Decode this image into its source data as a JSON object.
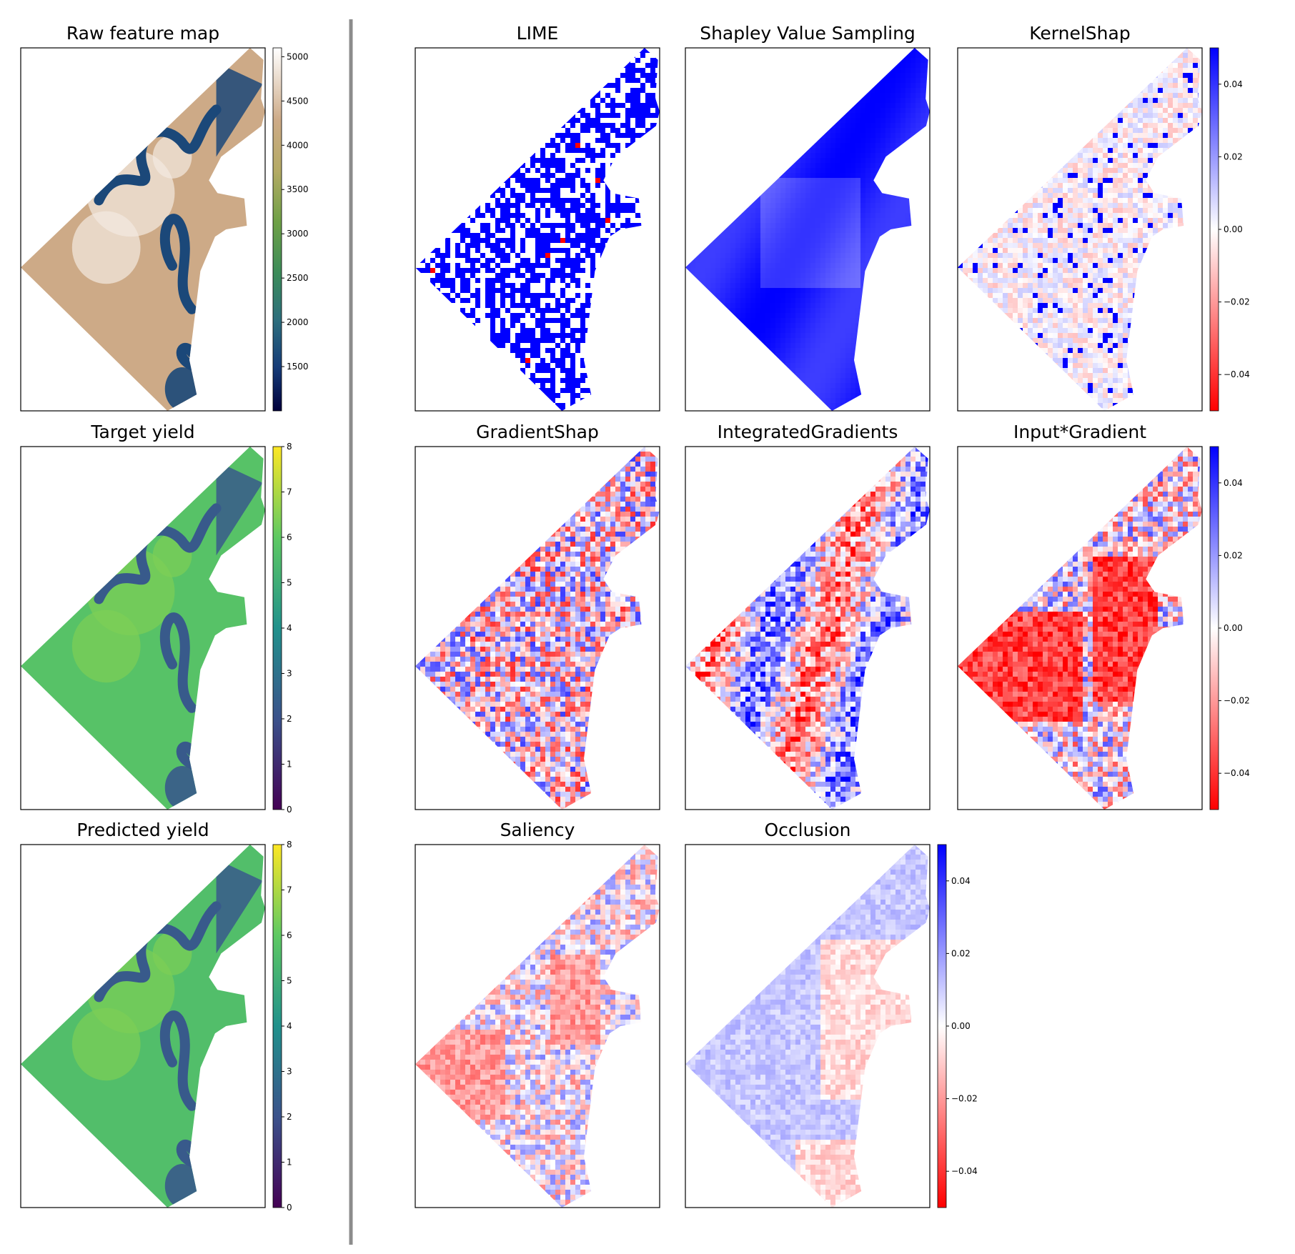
{
  "figure": {
    "colors": {
      "divider": "#8c8c8c",
      "frame": "#000000",
      "background": "#ffffff"
    }
  },
  "chart_data": [
    {
      "type": "heatmap",
      "title": "Raw feature map",
      "colormap": "gist_earth",
      "colorbar": {
        "min": 1000,
        "max": 5100,
        "ticks": [
          1500,
          2000,
          2500,
          3000,
          3500,
          4000,
          4500,
          5000
        ],
        "tick_labels": [
          "1500",
          "2000",
          "2500",
          "3000",
          "3500",
          "4000",
          "4500",
          "5000"
        ]
      },
      "grid": false
    },
    {
      "type": "heatmap",
      "title": "Target yield",
      "colormap": "viridis",
      "colorbar": {
        "min": 0,
        "max": 8,
        "ticks": [
          0,
          1,
          2,
          3,
          4,
          5,
          6,
          7,
          8
        ],
        "tick_labels": [
          "0",
          "1",
          "2",
          "3",
          "4",
          "5",
          "6",
          "7",
          "8"
        ]
      },
      "grid": false
    },
    {
      "type": "heatmap",
      "title": "Predicted yield",
      "colormap": "viridis",
      "colorbar": {
        "min": 0,
        "max": 8,
        "ticks": [
          0,
          1,
          2,
          3,
          4,
          5,
          6,
          7,
          8
        ],
        "tick_labels": [
          "0",
          "1",
          "2",
          "3",
          "4",
          "5",
          "6",
          "7",
          "8"
        ]
      },
      "grid": false
    },
    {
      "type": "heatmap",
      "title": "LIME",
      "colormap": "bwr_r",
      "value_range": [
        -0.05,
        0.05
      ],
      "grid": false
    },
    {
      "type": "heatmap",
      "title": "Shapley Value Sampling",
      "colormap": "bwr_r",
      "value_range": [
        -0.05,
        0.05
      ],
      "grid": false
    },
    {
      "type": "heatmap",
      "title": "KernelShap",
      "colormap": "bwr_r",
      "colorbar": {
        "min": -0.05,
        "max": 0.05,
        "ticks": [
          -0.04,
          -0.02,
          0,
          0.02,
          0.04
        ],
        "tick_labels": [
          "−0.04",
          "−0.02",
          "0.00",
          "0.02",
          "0.04"
        ]
      },
      "grid": false
    },
    {
      "type": "heatmap",
      "title": "GradientShap",
      "colormap": "bwr_r",
      "value_range": [
        -0.05,
        0.05
      ],
      "grid": false
    },
    {
      "type": "heatmap",
      "title": "IntegratedGradients",
      "colormap": "bwr_r",
      "value_range": [
        -0.05,
        0.05
      ],
      "grid": false
    },
    {
      "type": "heatmap",
      "title": "Input*Gradient",
      "colormap": "bwr_r",
      "colorbar": {
        "min": -0.05,
        "max": 0.05,
        "ticks": [
          -0.04,
          -0.02,
          0,
          0.02,
          0.04
        ],
        "tick_labels": [
          "−0.04",
          "−0.02",
          "0.00",
          "0.02",
          "0.04"
        ]
      },
      "grid": false
    },
    {
      "type": "heatmap",
      "title": "Saliency",
      "colormap": "bwr_r",
      "value_range": [
        -0.05,
        0.05
      ],
      "grid": false
    },
    {
      "type": "heatmap",
      "title": "Occlusion",
      "colormap": "bwr_r",
      "colorbar": {
        "min": -0.05,
        "max": 0.05,
        "ticks": [
          -0.04,
          -0.02,
          0,
          0.02,
          0.04
        ],
        "tick_labels": [
          "−0.04",
          "−0.02",
          "0.00",
          "0.02",
          "0.04"
        ]
      },
      "grid": false
    }
  ]
}
